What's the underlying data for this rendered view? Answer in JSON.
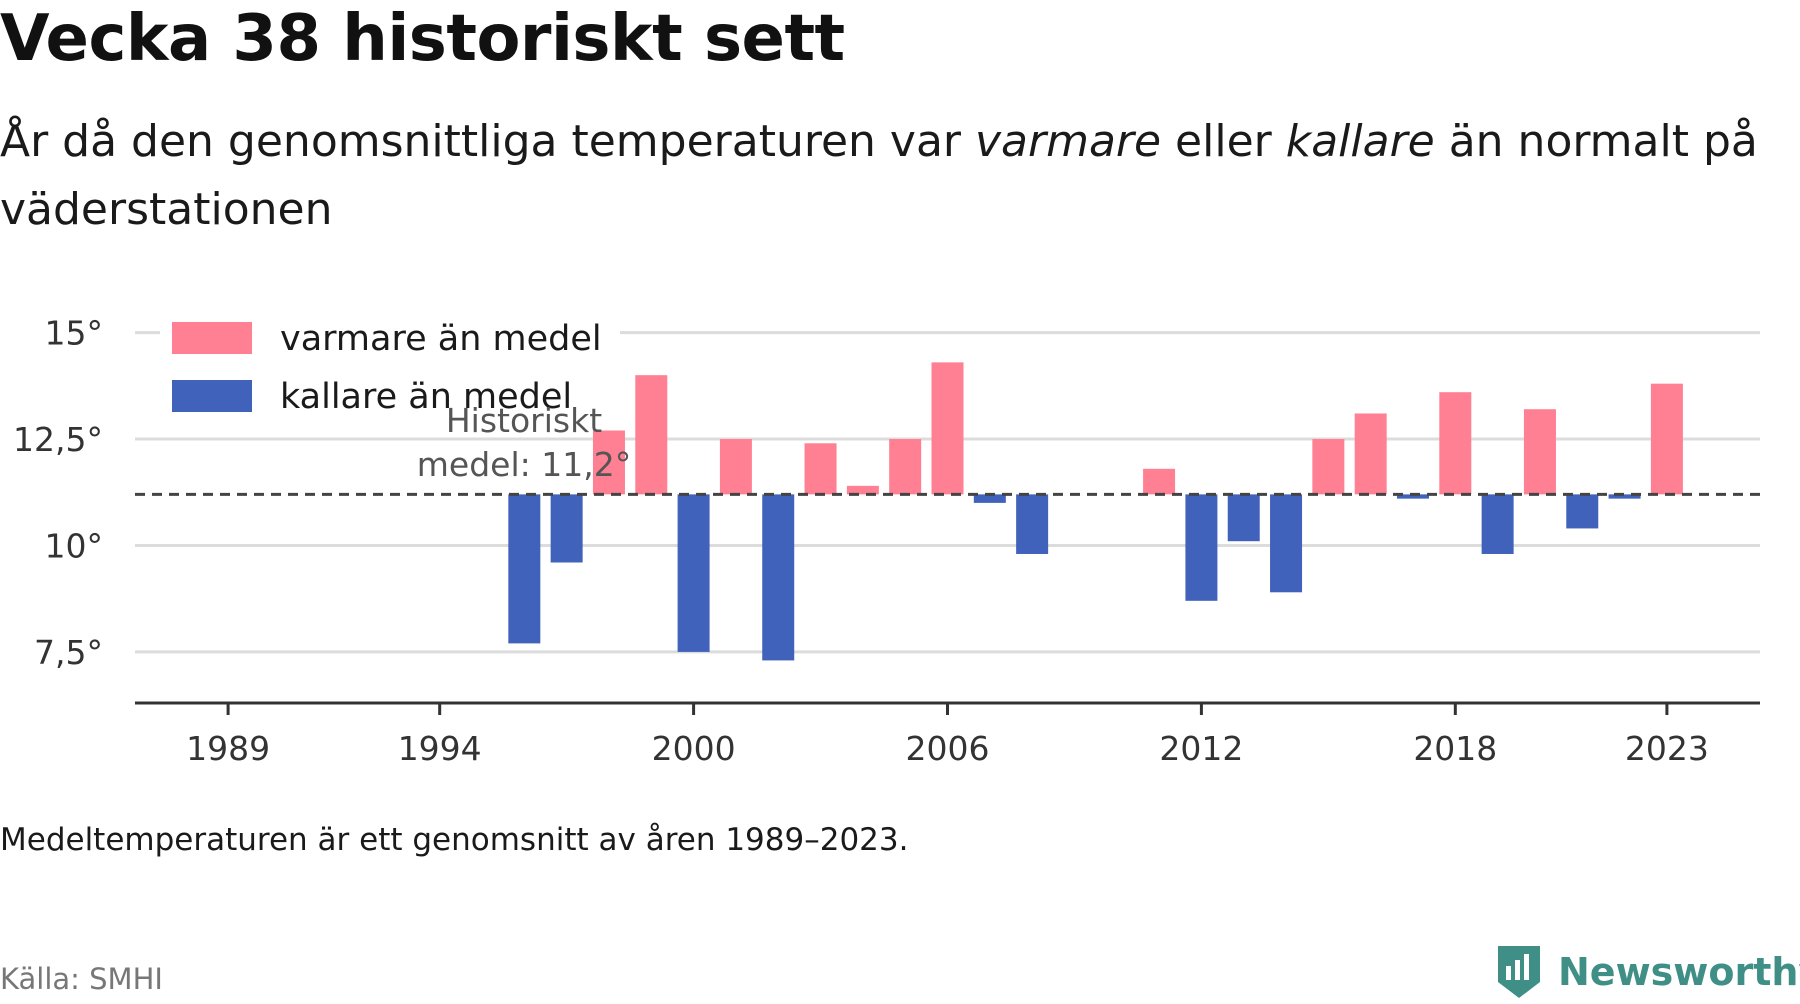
{
  "title": "Vecka 38 historiskt sett",
  "subtitle": {
    "part1": "År då den genomsnittliga temperaturen var ",
    "em1": "varmare",
    "part2": " eller ",
    "em2": "kallare",
    "part3": " än normalt på väderstationen"
  },
  "footnote": "Medeltemperaturen är ett genomsnitt av åren 1989–2023.",
  "source": "Källa: SMHI",
  "brand": {
    "name": "Newsworthy",
    "logo_icon": "newsworthy-logo-icon",
    "color": "#3f8f86"
  },
  "chart_data": {
    "type": "bar",
    "baseline": 11.2,
    "baseline_label": [
      "Historiskt",
      "medel: 11,2°"
    ],
    "ylim": [
      6.3,
      16.0
    ],
    "yticks": [
      {
        "value": 7.5,
        "label": "7,5°"
      },
      {
        "value": 10,
        "label": "10°"
      },
      {
        "value": 12.5,
        "label": "12,5°"
      },
      {
        "value": 15,
        "label": "15°"
      }
    ],
    "xlim": [
      1986.8,
      2025.2
    ],
    "xticks": [
      1989,
      1994,
      2000,
      2006,
      2012,
      2018,
      2023
    ],
    "colors": {
      "warmer": "#ff8092",
      "colder": "#4062bb",
      "grid": "#dcdcdc",
      "axis": "#333333",
      "baseline": "#444444"
    },
    "legend": {
      "position": "top-left",
      "warmer": "varmare än medel",
      "colder": "kallare än medel"
    },
    "x": [
      1996,
      1997,
      1998,
      1999,
      2000,
      2001,
      2002,
      2003,
      2004,
      2005,
      2006,
      2007,
      2008,
      2011,
      2012,
      2013,
      2014,
      2015,
      2016,
      2017,
      2018,
      2019,
      2020,
      2021,
      2022,
      2023
    ],
    "values": [
      7.7,
      9.6,
      12.7,
      14.0,
      7.5,
      12.5,
      7.3,
      12.4,
      11.4,
      12.5,
      14.3,
      11.0,
      9.8,
      11.8,
      8.7,
      10.1,
      8.9,
      12.5,
      13.1,
      11.1,
      13.6,
      9.8,
      13.2,
      10.4,
      11.1,
      13.8
    ]
  }
}
